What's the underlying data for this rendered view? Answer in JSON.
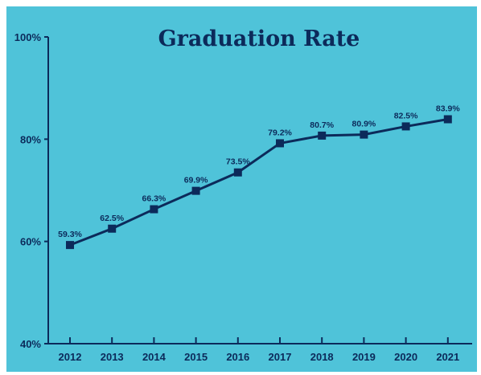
{
  "colors": {
    "background": "#4fc3d9",
    "ink": "#0c2a5a",
    "page": "#ffffff"
  },
  "chart_data": {
    "type": "line",
    "title": "Graduation Rate",
    "xlabel": "",
    "ylabel": "",
    "categories": [
      "2012",
      "2013",
      "2014",
      "2015",
      "2016",
      "2017",
      "2018",
      "2019",
      "2020",
      "2021"
    ],
    "values": [
      59.3,
      62.5,
      66.3,
      69.9,
      73.5,
      79.2,
      80.7,
      80.9,
      82.5,
      83.9
    ],
    "data_labels": [
      "59.3%",
      "62.5%",
      "66.3%",
      "69.9%",
      "73.5%",
      "79.2%",
      "80.7%",
      "80.9%",
      "82.5%",
      "83.9%"
    ],
    "ylim": [
      40,
      100
    ],
    "yticks": [
      40,
      60,
      80,
      100
    ],
    "ytick_labels": [
      "40%",
      "60%",
      "80%",
      "100%"
    ],
    "grid": false,
    "legend": "none",
    "marker": "square"
  }
}
